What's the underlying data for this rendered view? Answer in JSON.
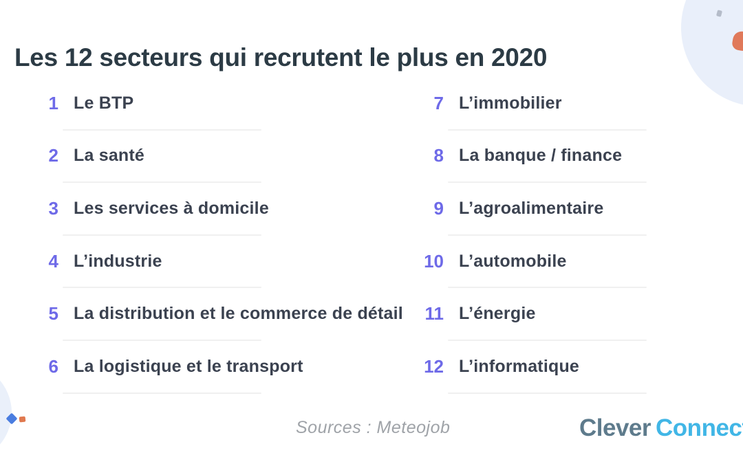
{
  "title": "Les 12 secteurs qui recrutent le plus en 2020",
  "list": {
    "left": [
      {
        "number": "1",
        "label": "Le BTP"
      },
      {
        "number": "2",
        "label": "La santé"
      },
      {
        "number": "3",
        "label": "Les services à domicile"
      },
      {
        "number": "4",
        "label": "L’industrie"
      },
      {
        "number": "5",
        "label": "La distribution et le commerce de détail"
      },
      {
        "number": "6",
        "label": "La logistique et le transport"
      }
    ],
    "right": [
      {
        "number": "7",
        "label": "L’immobilier"
      },
      {
        "number": "8",
        "label": "La banque / finance"
      },
      {
        "number": "9",
        "label": "L’agroalimentaire"
      },
      {
        "number": "10",
        "label": "L’automobile"
      },
      {
        "number": "11",
        "label": "L’énergie"
      },
      {
        "number": "12",
        "label": "L’informatique"
      }
    ]
  },
  "footer": {
    "sources": "Sources : Meteojob",
    "logo_part1": "Clever",
    "logo_part2": "Connect"
  },
  "colors": {
    "title_text": "#2c3b45",
    "number_accent": "#6e6ae8",
    "item_text": "#3b4250",
    "divider": "#f0f0f0",
    "sources_text": "#9fa3a8",
    "logo_gray": "#5e7b8c",
    "logo_blue": "#41b6e6",
    "blob_light_blue": "#e9effa",
    "accent_orange": "#e0795a",
    "accent_diamond_blue": "#4a7de0",
    "accent_square_orange": "#e0794f",
    "accent_dot_gray": "#b5bcc9"
  }
}
